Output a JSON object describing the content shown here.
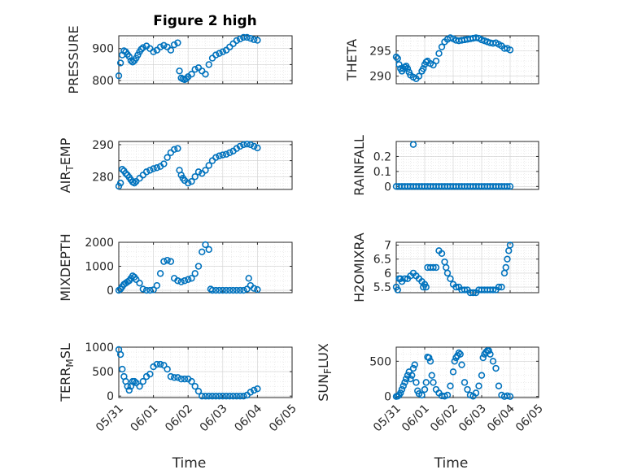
{
  "figure_title": "Figure 2 high",
  "chart_data": [
    {
      "type": "scatter",
      "ylabel": "PRESSURE",
      "xlabel": "",
      "title": "Figure 2 high",
      "xlim": [
        0,
        5
      ],
      "ylim": [
        790,
        940
      ],
      "yticks": [
        800,
        850,
        900
      ],
      "yticklabels": [
        "800",
        "",
        "900"
      ],
      "xticks": [
        0,
        1,
        2,
        3,
        4,
        5
      ],
      "xticklabels": [],
      "color": "#0072BD",
      "x": [
        0.0,
        0.05,
        0.1,
        0.15,
        0.2,
        0.25,
        0.3,
        0.35,
        0.4,
        0.45,
        0.5,
        0.55,
        0.6,
        0.65,
        0.7,
        0.8,
        0.9,
        1.0,
        1.1,
        1.2,
        1.3,
        1.4,
        1.5,
        1.6,
        1.7,
        1.75,
        1.8,
        1.85,
        1.9,
        1.95,
        2.0,
        2.1,
        2.2,
        2.3,
        2.4,
        2.5,
        2.6,
        2.7,
        2.8,
        2.9,
        3.0,
        3.1,
        3.2,
        3.3,
        3.4,
        3.5,
        3.6,
        3.7,
        3.8,
        3.9,
        4.0
      ],
      "y": [
        815,
        855,
        880,
        893,
        890,
        882,
        875,
        862,
        858,
        862,
        870,
        880,
        890,
        898,
        903,
        908,
        900,
        890,
        895,
        905,
        910,
        905,
        895,
        912,
        918,
        830,
        808,
        805,
        803,
        806,
        812,
        820,
        835,
        840,
        830,
        820,
        850,
        870,
        880,
        885,
        890,
        895,
        905,
        915,
        925,
        930,
        935,
        935,
        932,
        928,
        926
      ]
    },
    {
      "type": "scatter",
      "ylabel": "THETA",
      "xlabel": "",
      "xlim": [
        0,
        5
      ],
      "ylim": [
        288.5,
        298
      ],
      "yticks": [
        290,
        295
      ],
      "yticklabels": [
        "290",
        "295"
      ],
      "xticks": [
        0,
        1,
        2,
        3,
        4,
        5
      ],
      "xticklabels": [],
      "color": "#0072BD",
      "x": [
        0.0,
        0.05,
        0.1,
        0.15,
        0.2,
        0.25,
        0.3,
        0.35,
        0.4,
        0.45,
        0.5,
        0.6,
        0.7,
        0.8,
        0.9,
        0.95,
        1.0,
        1.05,
        1.1,
        1.2,
        1.3,
        1.4,
        1.5,
        1.6,
        1.7,
        1.8,
        1.9,
        2.0,
        2.1,
        2.2,
        2.3,
        2.4,
        2.5,
        2.6,
        2.7,
        2.8,
        2.9,
        3.0,
        3.1,
        3.2,
        3.3,
        3.4,
        3.5,
        3.6,
        3.7,
        3.8,
        3.9,
        4.0
      ],
      "y": [
        293.8,
        293.5,
        292.3,
        291.5,
        291.0,
        291.5,
        291.8,
        292.0,
        291.5,
        290.8,
        290.2,
        289.8,
        289.5,
        290.0,
        291.0,
        291.5,
        292.3,
        292.8,
        293.0,
        292.5,
        292.2,
        293.0,
        294.5,
        295.8,
        296.8,
        297.3,
        297.6,
        297.4,
        297.1,
        297.0,
        297.1,
        297.2,
        297.3,
        297.4,
        297.5,
        297.6,
        297.5,
        297.2,
        297.0,
        296.8,
        296.6,
        296.5,
        296.6,
        296.3,
        296.0,
        295.5,
        295.5,
        295.2
      ]
    },
    {
      "type": "scatter",
      "ylabel": "AIR_TEMP",
      "xlabel": "",
      "xlim": [
        0,
        5
      ],
      "ylim": [
        276,
        291
      ],
      "yticks": [
        280,
        285,
        290
      ],
      "yticklabels": [
        "280",
        "",
        "290"
      ],
      "xticks": [
        0,
        1,
        2,
        3,
        4,
        5
      ],
      "xticklabels": [],
      "color": "#0072BD",
      "x": [
        0.0,
        0.05,
        0.1,
        0.15,
        0.2,
        0.25,
        0.3,
        0.35,
        0.4,
        0.45,
        0.5,
        0.6,
        0.7,
        0.8,
        0.9,
        1.0,
        1.1,
        1.2,
        1.3,
        1.4,
        1.5,
        1.6,
        1.7,
        1.75,
        1.8,
        1.85,
        1.9,
        2.0,
        2.1,
        2.2,
        2.3,
        2.4,
        2.5,
        2.6,
        2.7,
        2.8,
        2.9,
        3.0,
        3.1,
        3.2,
        3.3,
        3.4,
        3.5,
        3.6,
        3.7,
        3.8,
        3.9,
        4.0
      ],
      "y": [
        277.0,
        278.0,
        282.3,
        281.8,
        281.0,
        280.5,
        279.8,
        279.0,
        278.3,
        278.0,
        278.5,
        279.5,
        280.5,
        281.5,
        282.0,
        282.5,
        282.8,
        283.2,
        284.0,
        286.0,
        287.5,
        288.5,
        288.8,
        282.0,
        280.5,
        279.5,
        278.8,
        278.0,
        278.5,
        280.0,
        281.5,
        281.0,
        282.0,
        283.5,
        285.0,
        286.0,
        286.5,
        286.8,
        287.0,
        287.5,
        288.0,
        288.8,
        289.5,
        290.0,
        290.2,
        290.0,
        289.5,
        289.0
      ]
    },
    {
      "type": "scatter",
      "ylabel": "RAINFALL",
      "xlabel": "",
      "xlim": [
        0,
        5
      ],
      "ylim": [
        -0.02,
        0.3
      ],
      "yticks": [
        0,
        0.1,
        0.2
      ],
      "yticklabels": [
        "0",
        "0.1",
        "0.2"
      ],
      "xticks": [
        0,
        1,
        2,
        3,
        4,
        5
      ],
      "xticklabels": [],
      "color": "#0072BD",
      "x": [
        0.0,
        0.1,
        0.2,
        0.3,
        0.4,
        0.5,
        0.6,
        0.7,
        0.8,
        0.9,
        1.0,
        1.1,
        1.2,
        1.3,
        1.4,
        1.5,
        1.6,
        1.7,
        1.8,
        1.9,
        2.0,
        2.1,
        2.2,
        2.3,
        2.4,
        2.5,
        2.6,
        2.7,
        2.8,
        2.9,
        3.0,
        3.1,
        3.2,
        3.3,
        3.4,
        3.5,
        3.6,
        3.7,
        3.8,
        3.9,
        4.0,
        0.6
      ],
      "y": [
        0,
        0,
        0,
        0,
        0,
        0,
        0,
        0,
        0,
        0,
        0,
        0,
        0,
        0,
        0,
        0,
        0,
        0,
        0,
        0,
        0,
        0,
        0,
        0,
        0,
        0,
        0,
        0,
        0,
        0,
        0,
        0,
        0,
        0,
        0,
        0,
        0,
        0,
        0,
        0,
        0,
        0.28
      ]
    },
    {
      "type": "scatter",
      "ylabel": "MIXDEPTH",
      "xlabel": "",
      "xlim": [
        0,
        5
      ],
      "ylim": [
        -100,
        2000
      ],
      "yticks": [
        0,
        1000,
        2000
      ],
      "yticklabels": [
        "0",
        "1000",
        "2000"
      ],
      "xticks": [
        0,
        1,
        2,
        3,
        4,
        5
      ],
      "xticklabels": [],
      "color": "#0072BD",
      "x": [
        0.0,
        0.05,
        0.1,
        0.15,
        0.2,
        0.25,
        0.3,
        0.35,
        0.4,
        0.45,
        0.5,
        0.6,
        0.7,
        0.8,
        0.9,
        1.0,
        1.1,
        1.2,
        1.3,
        1.4,
        1.5,
        1.6,
        1.7,
        1.8,
        1.9,
        2.0,
        2.1,
        2.2,
        2.3,
        2.4,
        2.5,
        2.6,
        2.65,
        2.7,
        2.8,
        2.9,
        3.0,
        3.1,
        3.2,
        3.3,
        3.4,
        3.5,
        3.6,
        3.7,
        3.75,
        3.8,
        3.9,
        4.0
      ],
      "y": [
        0,
        50,
        150,
        250,
        300,
        350,
        400,
        500,
        600,
        550,
        450,
        300,
        50,
        0,
        0,
        20,
        200,
        700,
        1200,
        1250,
        1200,
        500,
        400,
        350,
        400,
        450,
        500,
        700,
        1000,
        1600,
        1900,
        1700,
        50,
        0,
        0,
        0,
        0,
        0,
        0,
        0,
        0,
        0,
        0,
        50,
        500,
        200,
        80,
        30
      ]
    },
    {
      "type": "scatter",
      "ylabel": "H2OMIXRA",
      "xlabel": "",
      "xlim": [
        0,
        5
      ],
      "ylim": [
        5.3,
        7.1
      ],
      "yticks": [
        5.5,
        6,
        6.5,
        7
      ],
      "yticklabels": [
        "5.5",
        "6",
        "6.5",
        "7"
      ],
      "xticks": [
        0,
        1,
        2,
        3,
        4,
        5
      ],
      "xticklabels": [],
      "color": "#0072BD",
      "x": [
        0.0,
        0.05,
        0.1,
        0.15,
        0.2,
        0.3,
        0.4,
        0.5,
        0.6,
        0.7,
        0.8,
        0.9,
        0.95,
        1.0,
        1.05,
        1.1,
        1.2,
        1.3,
        1.4,
        1.5,
        1.6,
        1.7,
        1.75,
        1.8,
        1.9,
        2.0,
        2.1,
        2.2,
        2.3,
        2.4,
        2.5,
        2.6,
        2.7,
        2.8,
        2.9,
        3.0,
        3.1,
        3.2,
        3.3,
        3.4,
        3.5,
        3.6,
        3.7,
        3.8,
        3.85,
        3.9,
        3.95,
        4.0
      ],
      "y": [
        5.5,
        5.4,
        5.8,
        5.8,
        5.7,
        5.8,
        5.8,
        5.9,
        6.0,
        5.9,
        5.8,
        5.7,
        5.5,
        5.6,
        5.5,
        6.2,
        6.2,
        6.2,
        6.2,
        6.8,
        6.7,
        6.4,
        6.2,
        6.0,
        5.8,
        5.6,
        5.5,
        5.5,
        5.4,
        5.4,
        5.4,
        5.3,
        5.3,
        5.3,
        5.4,
        5.4,
        5.4,
        5.4,
        5.4,
        5.4,
        5.4,
        5.5,
        5.5,
        6.0,
        6.2,
        6.5,
        6.8,
        7.0
      ]
    },
    {
      "type": "scatter",
      "ylabel": "TERR_MSL",
      "xlabel": "Time",
      "xlim": [
        0,
        5
      ],
      "ylim": [
        -30,
        1000
      ],
      "yticks": [
        0,
        500,
        1000
      ],
      "yticklabels": [
        "0",
        "500",
        "1000"
      ],
      "xticks": [
        0,
        1,
        2,
        3,
        4,
        5
      ],
      "xticklabels": [
        "05/31",
        "06/01",
        "06/02",
        "06/03",
        "06/04",
        "06/05"
      ],
      "color": "#0072BD",
      "x": [
        0.0,
        0.05,
        0.1,
        0.15,
        0.2,
        0.25,
        0.3,
        0.35,
        0.4,
        0.45,
        0.5,
        0.6,
        0.7,
        0.8,
        0.9,
        1.0,
        1.1,
        1.2,
        1.3,
        1.4,
        1.5,
        1.6,
        1.7,
        1.8,
        1.9,
        2.0,
        2.1,
        2.2,
        2.3,
        2.4,
        2.5,
        2.6,
        2.7,
        2.8,
        2.9,
        3.0,
        3.1,
        3.2,
        3.3,
        3.4,
        3.5,
        3.6,
        3.7,
        3.8,
        3.9,
        4.0
      ],
      "y": [
        950,
        850,
        550,
        400,
        300,
        200,
        120,
        200,
        300,
        300,
        270,
        200,
        300,
        400,
        450,
        600,
        650,
        650,
        630,
        550,
        400,
        380,
        380,
        350,
        350,
        350,
        300,
        200,
        100,
        0,
        0,
        0,
        0,
        0,
        0,
        0,
        0,
        0,
        0,
        0,
        0,
        0,
        20,
        80,
        120,
        150
      ]
    },
    {
      "type": "scatter",
      "ylabel": "SUN_FLUX",
      "xlabel": "Time",
      "xlim": [
        0,
        5
      ],
      "ylim": [
        -15,
        700
      ],
      "yticks": [
        0,
        500
      ],
      "yticklabels": [
        "0",
        "500"
      ],
      "xticks": [
        0,
        1,
        2,
        3,
        4,
        5
      ],
      "xticklabels": [
        "05/31",
        "06/01",
        "06/02",
        "06/03",
        "06/04",
        "06/05"
      ],
      "color": "#0072BD",
      "x": [
        0.0,
        0.05,
        0.1,
        0.15,
        0.2,
        0.25,
        0.3,
        0.35,
        0.4,
        0.45,
        0.5,
        0.55,
        0.6,
        0.65,
        0.7,
        0.75,
        0.8,
        0.9,
        1.0,
        1.05,
        1.1,
        1.15,
        1.2,
        1.25,
        1.3,
        1.4,
        1.5,
        1.6,
        1.7,
        1.8,
        1.9,
        2.0,
        2.05,
        2.1,
        2.15,
        2.2,
        2.25,
        2.3,
        2.4,
        2.5,
        2.6,
        2.7,
        2.8,
        2.9,
        3.0,
        3.05,
        3.1,
        3.15,
        3.2,
        3.25,
        3.3,
        3.4,
        3.5,
        3.6,
        3.7,
        3.8,
        3.9,
        4.0
      ],
      "y": [
        0,
        5,
        20,
        50,
        100,
        150,
        200,
        250,
        300,
        350,
        250,
        300,
        400,
        450,
        200,
        80,
        40,
        20,
        100,
        200,
        560,
        550,
        500,
        300,
        200,
        100,
        50,
        10,
        5,
        20,
        150,
        350,
        500,
        550,
        580,
        620,
        600,
        450,
        200,
        100,
        20,
        5,
        50,
        150,
        300,
        550,
        600,
        630,
        650,
        650,
        600,
        500,
        400,
        150,
        20,
        0,
        10,
        0
      ]
    }
  ]
}
